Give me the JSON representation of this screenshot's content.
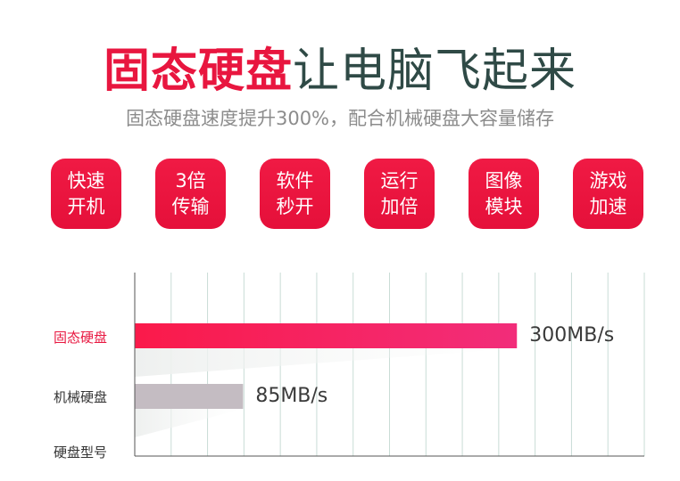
{
  "header": {
    "title_highlight": "固态硬盘",
    "title_rest": "让电脑飞起来",
    "subtitle": "固态硬盘速度提升300%，配合机械硬盘大容量储存"
  },
  "features": [
    {
      "line1": "快速",
      "line2": "开机"
    },
    {
      "line1": "3倍",
      "line2": "传输"
    },
    {
      "line1": "软件",
      "line2": "秒开"
    },
    {
      "line1": "运行",
      "line2": "加倍"
    },
    {
      "line1": "图像",
      "line2": "模块"
    },
    {
      "line1": "游戏",
      "line2": "加速"
    }
  ],
  "colors": {
    "accent": "#e8163f",
    "ssd_bar_start": "#fa1a4a",
    "ssd_bar_end": "#f22d7a",
    "hdd_bar": "#c4bcc2"
  },
  "chart_data": {
    "type": "bar",
    "orientation": "horizontal",
    "categories": [
      "固态硬盘",
      "机械硬盘"
    ],
    "values": [
      300,
      85
    ],
    "value_labels": [
      "300MB/s",
      "85MB/s"
    ],
    "xlim": [
      0,
      400
    ],
    "ylabel": "硬盘型号",
    "grid": true
  }
}
